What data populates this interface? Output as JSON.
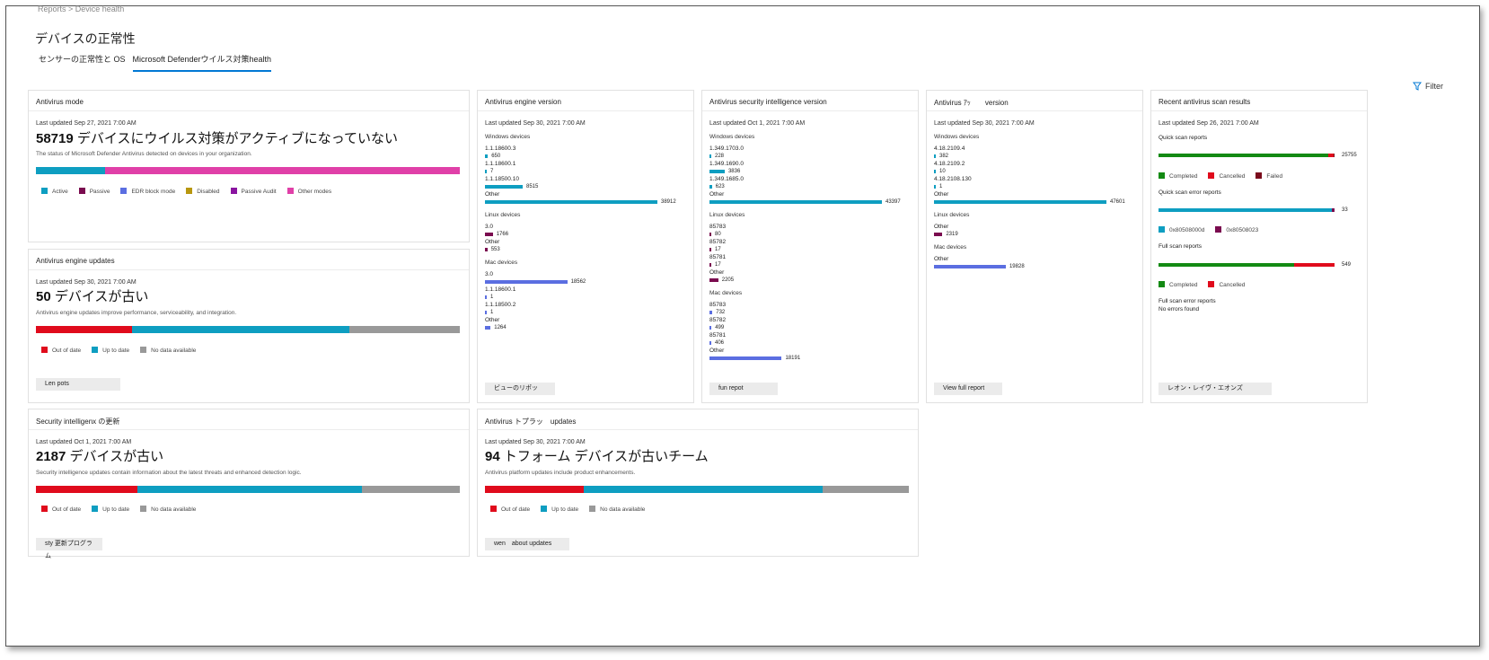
{
  "breadcrumb": "Reports  >  Device health",
  "page_title": "デバイスの正常性",
  "tabs": [
    {
      "label": "センサーの正常性と OS",
      "active": false
    },
    {
      "label": "Microsoft Defenderウイルス対策health",
      "active": true
    }
  ],
  "filter_label": "Filter",
  "colors": {
    "teal": "#0e9ec1",
    "magenta": "#e040a8",
    "dark_maroon": "#7a0b4f",
    "blue": "#5b6ee1",
    "olive": "#b8970f",
    "purple": "#8a14a0",
    "red": "#e00b1c",
    "gray": "#999999",
    "green": "#138a13",
    "accent": "#0078d4"
  },
  "antivirus_mode": {
    "title": "Antivirus mode",
    "updated": "Last updated Sep 27, 2021 7:00 AM",
    "count": "58719",
    "count_text": "デバイスにウイルス対策がアクティブになっていない",
    "desc": "The status of Microsoft Defender Antivirus detected on devices in your organization.",
    "bar_fractions": [
      0.163,
      0.837
    ],
    "legend": [
      "Active",
      "Passive",
      "EDR block mode",
      "Disabled",
      "Passive Audit",
      "Other modes"
    ]
  },
  "engine_updates": {
    "title": "Antivirus engine updates",
    "updated": "Last updated Sep 30, 2021 7:00 AM",
    "count": "50",
    "count_text": "デバイスが古い",
    "desc": "Antivirus engine updates improve performance, serviceability, and integration.",
    "bar_fractions": [
      0.226,
      0.513,
      0.261
    ],
    "legend": [
      "Out of date",
      "Up to date",
      "No data available"
    ],
    "button": "Len pots"
  },
  "security_updates": {
    "title": "Security inteIligenx の更新",
    "updated": "Last updated Oct 1, 2021 7:00 AM",
    "count": "2187",
    "count_text": "デバイスが古い",
    "desc": "Security intelligence updates contain information about the latest threats and enhanced detection logic.",
    "bar_fractions": [
      0.24,
      0.53,
      0.23
    ],
    "legend": [
      "Out of date",
      "Up to date",
      "No data available"
    ],
    "button": "sty 更新プログラム"
  },
  "platform_updates": {
    "title": "Antivirus トプラッ　updates",
    "updated": "Last updated Sep 30, 2021 7:00 AM",
    "count": "94",
    "count_text": "トフォーム デバイスが古いチーム",
    "desc": "Antivirus platform updates include product enhancements.",
    "bar_fractions": [
      0.234,
      0.562,
      0.204
    ],
    "legend": [
      "Out of date",
      "Up to date",
      "No data available"
    ],
    "button": "wen　about updates"
  },
  "engine_version": {
    "title": "Antivirus engine version",
    "updated": "Last updated Sep 30, 2021 7:00 AM",
    "groups": [
      {
        "name": "Windows devices",
        "rows": [
          {
            "label": "1.1.18600.3",
            "value": 650,
            "display": "650",
            "color": "teal"
          },
          {
            "label": "1.1.18600.1",
            "value": 7,
            "display": "7",
            "color": "teal"
          },
          {
            "label": "1.1.18500.10",
            "value": 8515,
            "display": "8515",
            "color": "teal"
          },
          {
            "label": "Other",
            "value": 38912,
            "display": "38912",
            "color": "teal"
          }
        ]
      },
      {
        "name": "Linux devices",
        "rows": [
          {
            "label": "3.0",
            "value": 1766,
            "display": "1766",
            "color": "dark_maroon"
          },
          {
            "label": "Other",
            "value": 553,
            "display": "553",
            "color": "dark_maroon"
          }
        ]
      },
      {
        "name": "Mac devices",
        "rows": [
          {
            "label": "3.0",
            "value": 18562,
            "display": "18562",
            "color": "blue"
          },
          {
            "label": "1.1.18600.1",
            "value": 1,
            "display": "1",
            "color": "blue"
          },
          {
            "label": "1.1.18500.2",
            "value": 1,
            "display": "1",
            "color": "blue"
          },
          {
            "label": "Other",
            "value": 1264,
            "display": "1264",
            "color": "blue"
          }
        ]
      }
    ],
    "button": "ビューのリポッ"
  },
  "si_version": {
    "title": "Antivirus security intelligence version",
    "updated": "Last updated Oct 1, 2021 7:00 AM",
    "groups": [
      {
        "name": "Windows devices",
        "rows": [
          {
            "label": "1.349.1703.0",
            "value": 228,
            "display": "228",
            "color": "teal"
          },
          {
            "label": "1.349.1690.0",
            "value": 3836,
            "display": "3836",
            "color": "teal"
          },
          {
            "label": "1.349.1685.0",
            "value": 623,
            "display": "623",
            "color": "teal"
          },
          {
            "label": "Other",
            "value": 43397,
            "display": "43397",
            "color": "teal"
          }
        ]
      },
      {
        "name": "Linux devices",
        "rows": [
          {
            "label": "85783",
            "value": 80,
            "display": "80",
            "color": "dark_maroon"
          },
          {
            "label": "85782",
            "value": 17,
            "display": "17",
            "color": "dark_maroon"
          },
          {
            "label": "85781",
            "value": 17,
            "display": "17",
            "color": "dark_maroon"
          },
          {
            "label": "Other",
            "value": 2205,
            "display": "2205",
            "color": "dark_maroon"
          }
        ]
      },
      {
        "name": "Mac devices",
        "rows": [
          {
            "label": "85783",
            "value": 732,
            "display": "732",
            "color": "blue"
          },
          {
            "label": "85782",
            "value": 499,
            "display": "499",
            "color": "blue"
          },
          {
            "label": "85781",
            "value": 406,
            "display": "406",
            "color": "blue"
          },
          {
            "label": "Other",
            "value": 18191,
            "display": "18191",
            "color": "blue"
          }
        ]
      }
    ],
    "button": "fun repot"
  },
  "platform_version": {
    "title": "Antivirus ｱｯ　　version",
    "updated": "Last updated Sep 30, 2021 7:00 AM",
    "groups": [
      {
        "name": "Windows devices",
        "rows": [
          {
            "label": "4.18.2109.4",
            "value": 382,
            "display": "382",
            "color": "teal"
          },
          {
            "label": "4.18.2109.2",
            "value": 10,
            "display": "10",
            "color": "teal"
          },
          {
            "label": "4.18.2108.130",
            "value": 1,
            "display": "1",
            "color": "teal"
          },
          {
            "label": "Other",
            "value": 47601,
            "display": "47601",
            "color": "teal"
          }
        ]
      },
      {
        "name": "Linux devices",
        "rows": [
          {
            "label": "Other",
            "value": 2319,
            "display": "2319",
            "color": "dark_maroon"
          }
        ]
      },
      {
        "name": "Mac devices",
        "rows": [
          {
            "label": "Other",
            "value": 19828,
            "display": "19828",
            "color": "blue"
          }
        ]
      }
    ],
    "button": "View full report"
  },
  "scan_results": {
    "title": "Recent antivirus scan results",
    "updated": "Last updated Sep 26, 2021 7:00 AM",
    "quick_label": "Quick scan reports",
    "quick_value": "25755",
    "quick_fractions": [
      0.965,
      0.03,
      0.005
    ],
    "quick_legend": [
      "Completed",
      "Cancelled",
      "Failed"
    ],
    "quick_err_label": "Quick scan error reports",
    "quick_err_value": "33",
    "quick_err_fractions": [
      0.985,
      0.015
    ],
    "quick_err_legend": [
      "0x80508000d",
      "0x80508023"
    ],
    "full_label": "Full scan reports",
    "full_value": "549",
    "full_fractions": [
      0.77,
      0.23
    ],
    "full_legend": [
      "Completed",
      "Cancelled"
    ],
    "full_err_label": "Full scan error reports",
    "full_err_text": "No errors found",
    "button": "レオン・レイヴ・エオンズ"
  }
}
